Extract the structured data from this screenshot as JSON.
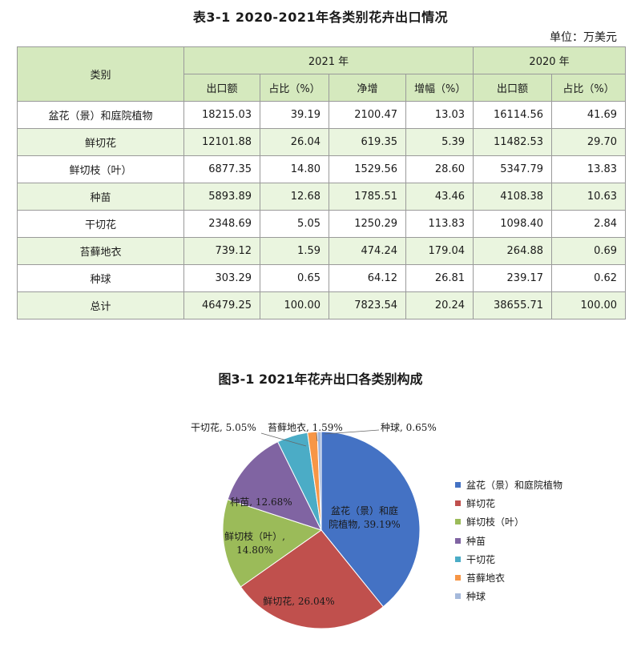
{
  "table": {
    "title": "表3-1  2020-2021年各类别花卉出口情况",
    "unit": "单位：万美元",
    "header": {
      "category": "类别",
      "year2021": "2021 年",
      "year2020": "2020 年",
      "cols": [
        "出口额",
        "占比（%）",
        "净增",
        "增幅（%）",
        "出口额",
        "占比（%）"
      ]
    },
    "rows": [
      {
        "name": "盆花（景）和庭院植物",
        "c": [
          "18215.03",
          "39.19",
          "2100.47",
          "13.03",
          "16114.56",
          "41.69"
        ]
      },
      {
        "name": "鲜切花",
        "c": [
          "12101.88",
          "26.04",
          "619.35",
          "5.39",
          "11482.53",
          "29.70"
        ]
      },
      {
        "name": "鲜切枝（叶）",
        "c": [
          "6877.35",
          "14.80",
          "1529.56",
          "28.60",
          "5347.79",
          "13.83"
        ]
      },
      {
        "name": "种苗",
        "c": [
          "5893.89",
          "12.68",
          "1785.51",
          "43.46",
          "4108.38",
          "10.63"
        ]
      },
      {
        "name": "干切花",
        "c": [
          "2348.69",
          "5.05",
          "1250.29",
          "113.83",
          "1098.40",
          "2.84"
        ]
      },
      {
        "name": "苔藓地衣",
        "c": [
          "739.12",
          "1.59",
          "474.24",
          "179.04",
          "264.88",
          "0.69"
        ]
      },
      {
        "name": "种球",
        "c": [
          "303.29",
          "0.65",
          "64.12",
          "26.81",
          "239.17",
          "0.62"
        ]
      },
      {
        "name": "总计",
        "c": [
          "46479.25",
          "100.00",
          "7823.54",
          "20.24",
          "38655.71",
          "100.00"
        ]
      }
    ]
  },
  "chart_data": {
    "type": "pie",
    "title": "图3-1 2021年花卉出口各类别构成",
    "legend_position": "right",
    "slices": [
      {
        "name": "盆花（景）和庭院植物",
        "value": 39.19,
        "label_lines": [
          "盆花（景）和庭",
          "院植物, 39.19%"
        ],
        "color": "#4472C4"
      },
      {
        "name": "鲜切花",
        "value": 26.04,
        "label_lines": [
          "鲜切花, 26.04%"
        ],
        "color": "#C0504D"
      },
      {
        "name": "鲜切枝（叶）",
        "value": 14.8,
        "label_lines": [
          "鲜切枝（叶）,",
          "14.80%"
        ],
        "color": "#9BBB59"
      },
      {
        "name": "种苗",
        "value": 12.68,
        "label_lines": [
          "种苗, 12.68%"
        ],
        "color": "#8064A2"
      },
      {
        "name": "干切花",
        "value": 5.05,
        "label_lines": [
          "干切花, 5.05%"
        ],
        "color": "#4BACC6"
      },
      {
        "name": "苔藓地衣",
        "value": 1.59,
        "label_lines": [
          "苔藓地衣, 1.59%"
        ],
        "color": "#F79646"
      },
      {
        "name": "种球",
        "value": 0.65,
        "label_lines": [
          "种球, 0.65%"
        ],
        "color": "#A5B9DB"
      }
    ]
  }
}
